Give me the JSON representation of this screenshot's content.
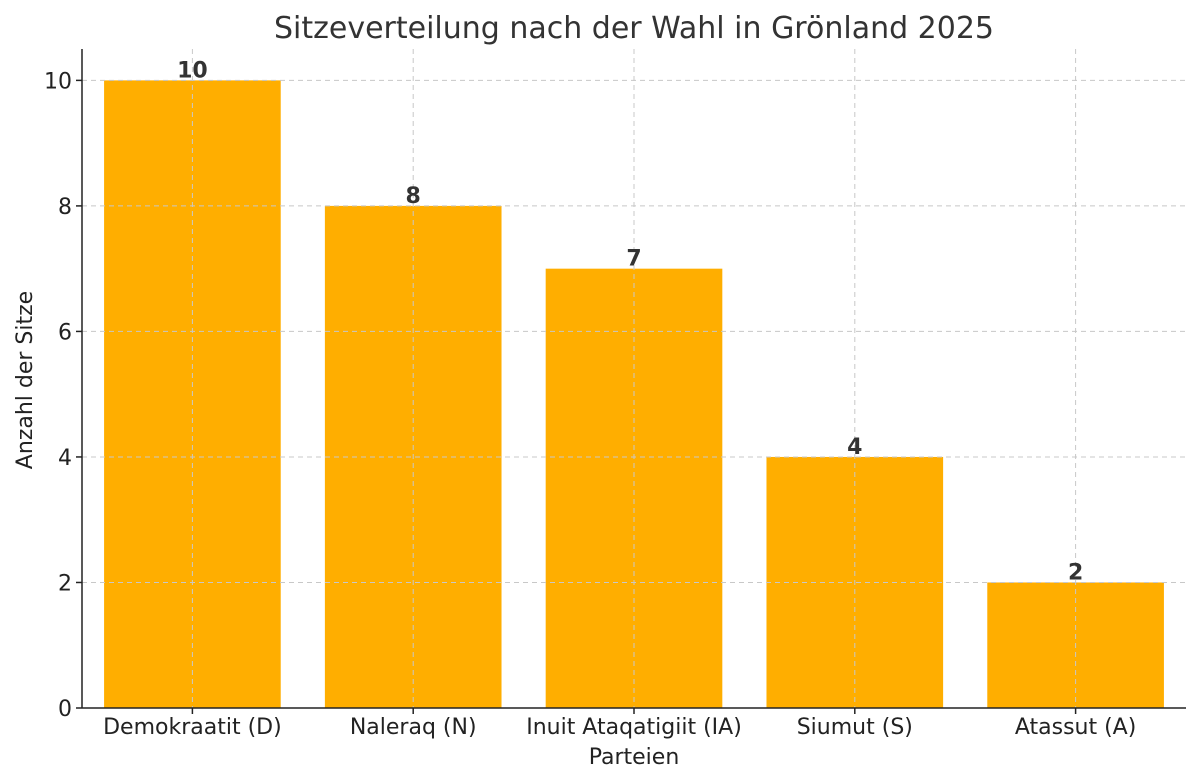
{
  "chart_data": {
    "type": "bar",
    "title": "Sitzeverteilung nach der Wahl in Grönland 2025",
    "xlabel": "Parteien",
    "ylabel": "Anzahl der Sitze",
    "categories": [
      "Demokraatit (D)",
      "Naleraq (N)",
      "Inuit Ataqatigiit (IA)",
      "Siumut (S)",
      "Atassut (A)"
    ],
    "values": [
      10,
      8,
      7,
      4,
      2
    ],
    "value_labels": [
      "10",
      "8",
      "7",
      "4",
      "2"
    ],
    "yticks": [
      0,
      2,
      4,
      6,
      8,
      10
    ],
    "ytick_labels": [
      "0",
      "2",
      "4",
      "6",
      "8",
      "10"
    ],
    "ylim": [
      0,
      10.5
    ],
    "grid": true,
    "bar_color": "#FFAE00"
  }
}
